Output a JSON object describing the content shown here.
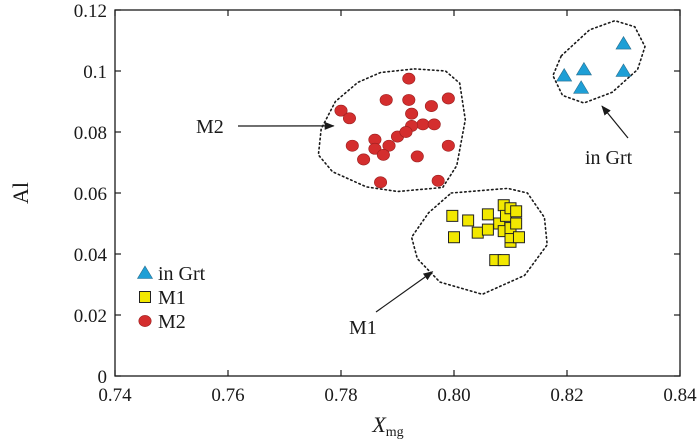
{
  "chart_data": {
    "type": "scatter",
    "xlabel": "X",
    "xlabel_subscript": "mg",
    "ylabel": "Al",
    "xlim": [
      0.74,
      0.84
    ],
    "ylim": [
      0,
      0.12
    ],
    "xticks": [
      {
        "value": 0.74,
        "label": "0.74"
      },
      {
        "value": 0.76,
        "label": "0.76"
      },
      {
        "value": 0.78,
        "label": "0.78"
      },
      {
        "value": 0.8,
        "label": "0.80"
      },
      {
        "value": 0.82,
        "label": "0.82"
      },
      {
        "value": 0.84,
        "label": "0.84"
      }
    ],
    "yticks": [
      {
        "value": 0,
        "label": "0"
      },
      {
        "value": 0.02,
        "label": "0.02"
      },
      {
        "value": 0.04,
        "label": "0.04"
      },
      {
        "value": 0.06,
        "label": "0.06"
      },
      {
        "value": 0.08,
        "label": "0.08"
      },
      {
        "value": 0.1,
        "label": "0.1"
      },
      {
        "value": 0.12,
        "label": "0.12"
      }
    ],
    "series": [
      {
        "name": "in Grt",
        "marker": "triangle",
        "color": "#1e9fd6",
        "points": [
          [
            0.8195,
            0.0985
          ],
          [
            0.8225,
            0.0945
          ],
          [
            0.823,
            0.1005
          ],
          [
            0.83,
            0.109
          ],
          [
            0.83,
            0.1
          ]
        ]
      },
      {
        "name": "M1",
        "marker": "square",
        "color": "#f2e800",
        "points": [
          [
            0.7997,
            0.0525
          ],
          [
            0.8025,
            0.051
          ],
          [
            0.8,
            0.0455
          ],
          [
            0.8042,
            0.047
          ],
          [
            0.806,
            0.048
          ],
          [
            0.806,
            0.053
          ],
          [
            0.8073,
            0.038
          ],
          [
            0.8088,
            0.038
          ],
          [
            0.808,
            0.05
          ],
          [
            0.8088,
            0.056
          ],
          [
            0.8088,
            0.0475
          ],
          [
            0.8092,
            0.0525
          ],
          [
            0.81,
            0.055
          ],
          [
            0.81,
            0.044
          ],
          [
            0.81,
            0.0455
          ],
          [
            0.81,
            0.0485
          ],
          [
            0.811,
            0.05
          ],
          [
            0.811,
            0.054
          ],
          [
            0.8115,
            0.0455
          ]
        ]
      },
      {
        "name": "M2",
        "marker": "circle",
        "color": "#d42e2e",
        "points": [
          [
            0.792,
            0.0975
          ],
          [
            0.788,
            0.0905
          ],
          [
            0.792,
            0.0905
          ],
          [
            0.796,
            0.0885
          ],
          [
            0.799,
            0.091
          ],
          [
            0.78,
            0.087
          ],
          [
            0.7815,
            0.0845
          ],
          [
            0.7925,
            0.086
          ],
          [
            0.7945,
            0.0825
          ],
          [
            0.7965,
            0.0825
          ],
          [
            0.7925,
            0.082
          ],
          [
            0.786,
            0.0775
          ],
          [
            0.79,
            0.0785
          ],
          [
            0.7915,
            0.08
          ],
          [
            0.7885,
            0.0755
          ],
          [
            0.786,
            0.0745
          ],
          [
            0.782,
            0.0755
          ],
          [
            0.7875,
            0.0725
          ],
          [
            0.7935,
            0.072
          ],
          [
            0.799,
            0.0755
          ],
          [
            0.784,
            0.071
          ],
          [
            0.787,
            0.0635
          ],
          [
            0.7972,
            0.064
          ]
        ]
      }
    ],
    "envelopes": [
      {
        "group": "M2",
        "outline": [
          [
            0.793,
            0.1007
          ],
          [
            0.7985,
            0.1
          ],
          [
            0.801,
            0.096
          ],
          [
            0.802,
            0.084
          ],
          [
            0.8005,
            0.069
          ],
          [
            0.798,
            0.0618
          ],
          [
            0.79,
            0.0605
          ],
          [
            0.7845,
            0.062
          ],
          [
            0.7785,
            0.067
          ],
          [
            0.776,
            0.0725
          ],
          [
            0.7765,
            0.081
          ],
          [
            0.779,
            0.09
          ],
          [
            0.783,
            0.0963
          ],
          [
            0.787,
            0.0995
          ]
        ]
      },
      {
        "group": "M1",
        "outline": [
          [
            0.7995,
            0.06
          ],
          [
            0.8095,
            0.0615
          ],
          [
            0.813,
            0.06
          ],
          [
            0.816,
            0.052
          ],
          [
            0.8165,
            0.043
          ],
          [
            0.8125,
            0.033
          ],
          [
            0.805,
            0.0268
          ],
          [
            0.7975,
            0.0308
          ],
          [
            0.7935,
            0.0385
          ],
          [
            0.7925,
            0.0455
          ],
          [
            0.7955,
            0.0535
          ]
        ]
      },
      {
        "group": "in Grt",
        "outline": [
          [
            0.819,
            0.105
          ],
          [
            0.824,
            0.1135
          ],
          [
            0.8285,
            0.1165
          ],
          [
            0.832,
            0.1145
          ],
          [
            0.8338,
            0.108
          ],
          [
            0.8325,
            0.1005
          ],
          [
            0.828,
            0.093
          ],
          [
            0.823,
            0.0895
          ],
          [
            0.8192,
            0.092
          ],
          [
            0.8175,
            0.0985
          ]
        ]
      }
    ],
    "annotations": [
      {
        "text": "M2",
        "target": [
          0.7787,
          0.082
        ]
      },
      {
        "text": "M1",
        "target": [
          0.7962,
          0.0342
        ]
      },
      {
        "text": "in Grt",
        "target": [
          0.8262,
          0.0885
        ]
      }
    ],
    "legend": {
      "position": "lower-left",
      "entries": [
        "in Grt",
        "M1",
        "M2"
      ]
    }
  }
}
